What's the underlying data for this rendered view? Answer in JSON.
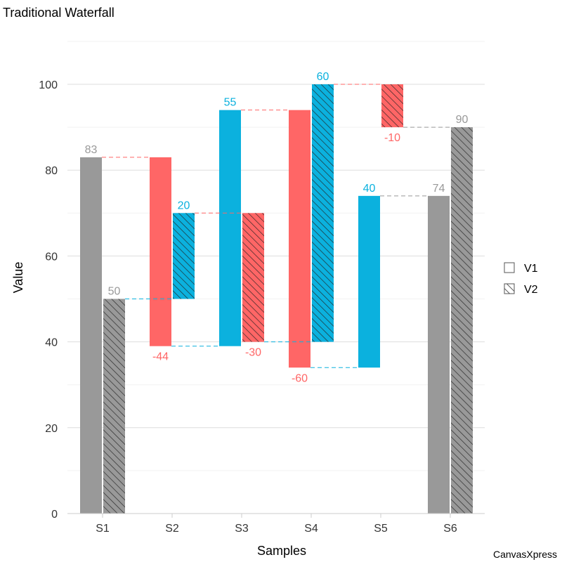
{
  "chart_data": {
    "type": "waterfall",
    "title": "Traditional Waterfall",
    "xlabel": "Samples",
    "ylabel": "Value",
    "categories": [
      "S1",
      "S2",
      "S3",
      "S4",
      "S5",
      "S6"
    ],
    "ylim": [
      0,
      110
    ],
    "yticks": [
      0,
      20,
      40,
      60,
      80,
      100
    ],
    "grid": true,
    "legend_position": "right",
    "series": [
      {
        "name": "V1",
        "pattern": "solid",
        "values": [
          83,
          -44,
          55,
          -60,
          40,
          74
        ],
        "is_total": [
          true,
          false,
          false,
          false,
          false,
          true
        ]
      },
      {
        "name": "V2",
        "pattern": "hatched",
        "values": [
          50,
          20,
          -30,
          60,
          -10,
          90
        ],
        "is_total": [
          true,
          false,
          false,
          false,
          false,
          true
        ]
      }
    ],
    "colors": {
      "total": "#999999",
      "negative": "#FF6666",
      "positive": "#0BB1DE"
    }
  },
  "watermark": "CanvasXpress"
}
